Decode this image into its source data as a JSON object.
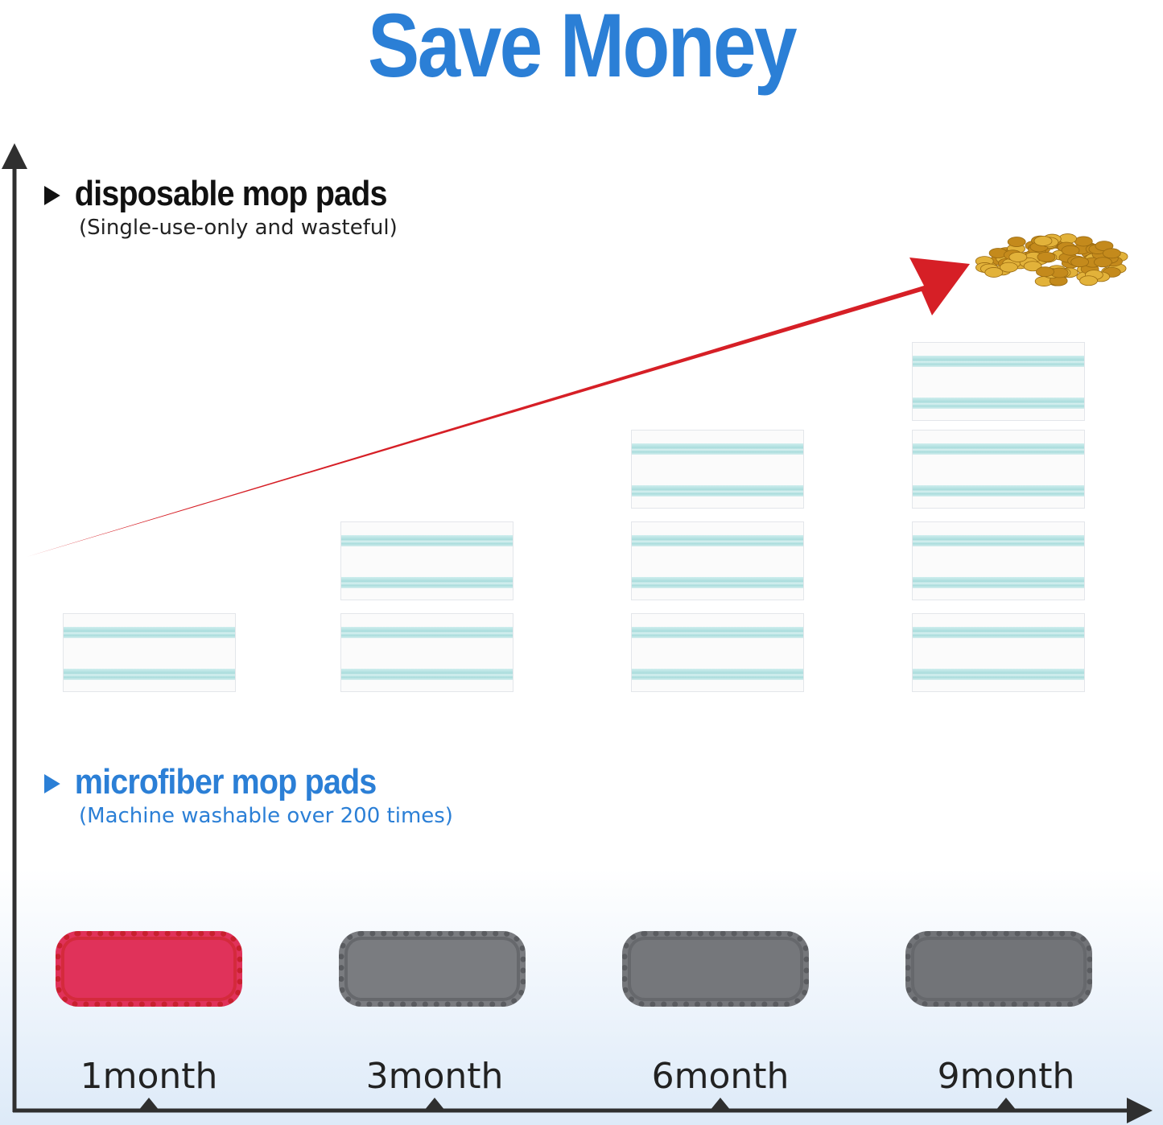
{
  "title": "Save Money",
  "disposable": {
    "label": "disposable mop pads",
    "note": "(Single-use-only and wasteful)",
    "pad_counts": [
      1,
      2,
      3,
      4
    ]
  },
  "microfiber": {
    "label": "microfiber mop pads",
    "note": "(Machine washable over 200 times)",
    "pad_colors": [
      "#e0325a",
      "#7a7c80",
      "#75777b",
      "#727478"
    ]
  },
  "timeline": [
    "1month",
    "3month",
    "6month",
    "9month"
  ],
  "colors": {
    "title": "#2b7fd6",
    "arrow": "#d61f26",
    "axis": "#2f2f2f",
    "coins": "#d4a12a"
  }
}
